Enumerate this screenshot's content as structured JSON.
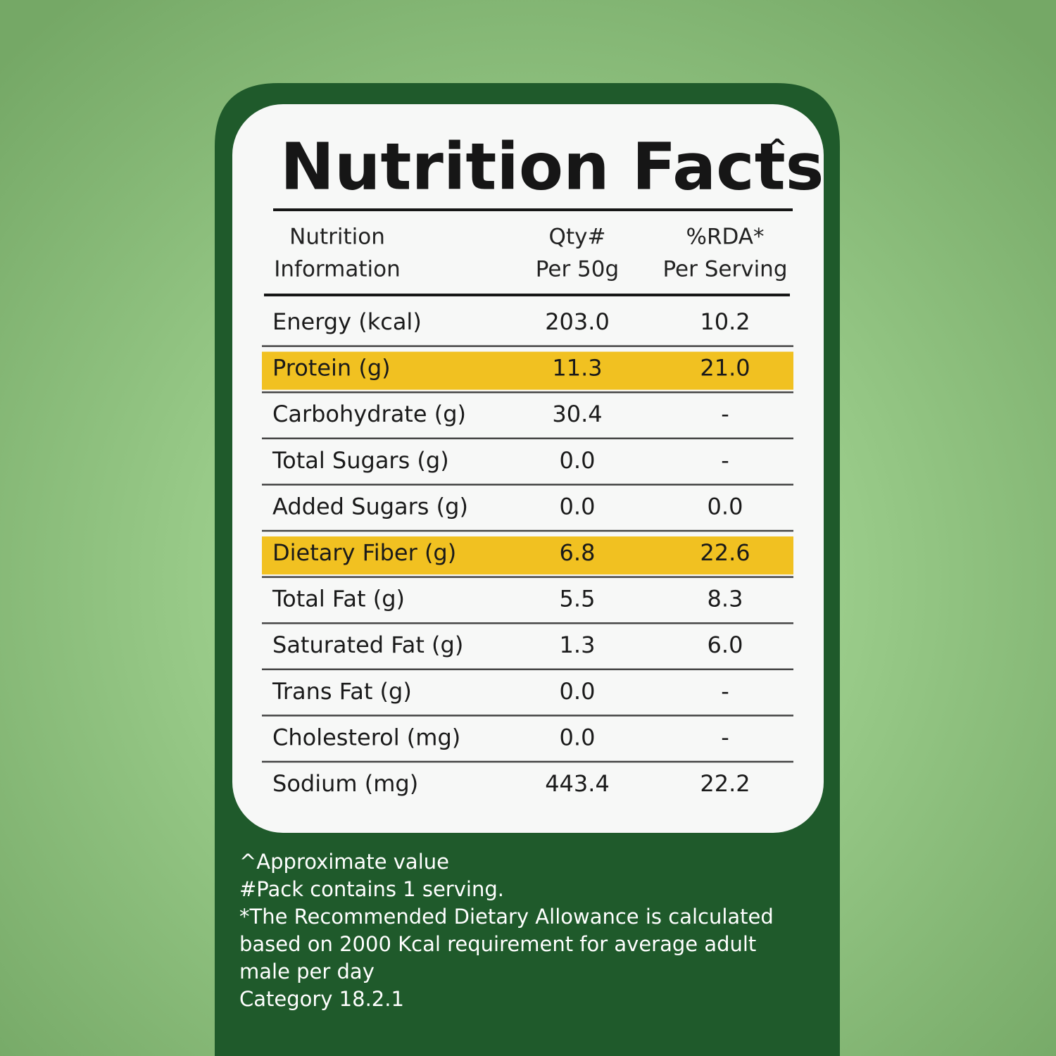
{
  "title": "Nutrition Facts",
  "title_mark": "^",
  "header": [
    [
      "Nutrition",
      "Information"
    ],
    [
      "Qty#",
      "Per 50g"
    ],
    [
      "%RDA*",
      "Per Serving"
    ]
  ],
  "rows": [
    {
      "label": "Energy (kcal)",
      "qty": "203.0",
      "rda": "10.2",
      "highlight": false
    },
    {
      "label": "Protein (g)",
      "qty": "11.3",
      "rda": "21.0",
      "highlight": true
    },
    {
      "label": "Carbohydrate (g)",
      "qty": "30.4",
      "rda": "-",
      "highlight": false
    },
    {
      "label": "Total Sugars (g)",
      "qty": "0.0",
      "rda": "-",
      "highlight": false
    },
    {
      "label": "Added Sugars (g)",
      "qty": "0.0",
      "rda": "0.0",
      "highlight": false
    },
    {
      "label": "Dietary Fiber (g)",
      "qty": "6.8",
      "rda": "22.6",
      "highlight": true
    },
    {
      "label": "Total Fat (g)",
      "qty": "5.5",
      "rda": "8.3",
      "highlight": false
    },
    {
      "label": "Saturated Fat (g)",
      "qty": "1.3",
      "rda": "6.0",
      "highlight": false
    },
    {
      "label": "Trans Fat (g)",
      "qty": "0.0",
      "rda": "-",
      "highlight": false
    },
    {
      "label": "Cholesterol (mg)",
      "qty": "0.0",
      "rda": "-",
      "highlight": false
    },
    {
      "label": "Sodium (mg)",
      "qty": "443.4",
      "rda": "22.2",
      "highlight": false
    }
  ],
  "highlight_color": "#f1c121",
  "footnotes": [
    "^Approximate value",
    "#Pack contains 1 serving.",
    "*The Recommended Dietary Allowance is calculated",
    "based on 2000 Kcal requirement for average adult",
    "male per day",
    "Category 18.2.1"
  ]
}
